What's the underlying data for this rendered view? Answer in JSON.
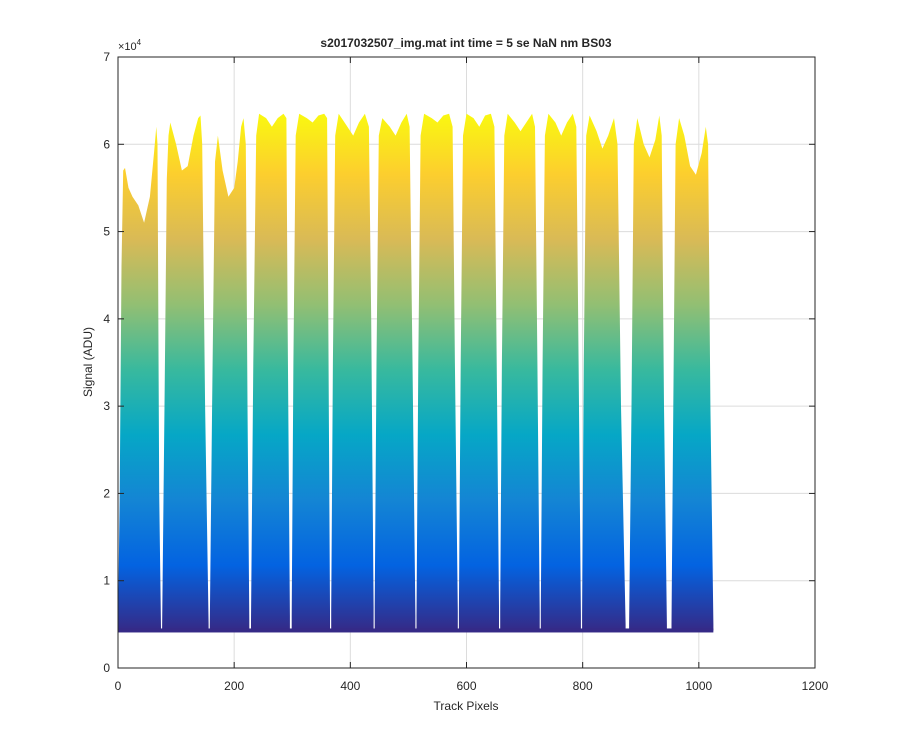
{
  "chart_data": {
    "type": "area",
    "title": "s2017032507_img.mat int time = 5 se  NaN nm BS03",
    "xlabel": "Track Pixels",
    "ylabel": "Signal (ADU)",
    "exponent_label": "×10",
    "exponent_power": "4",
    "xlim": [
      0,
      1200
    ],
    "ylim": [
      0,
      70000
    ],
    "y_scale_factor": 10000,
    "xticks": [
      0,
      200,
      400,
      600,
      800,
      1000,
      1200
    ],
    "yticks": [
      0,
      10000,
      20000,
      30000,
      40000,
      50000,
      60000,
      70000
    ],
    "xtick_labels": [
      "0",
      "200",
      "400",
      "600",
      "800",
      "1000",
      "1200"
    ],
    "ytick_labels": [
      "0",
      "1",
      "2",
      "3",
      "4",
      "5",
      "6",
      "7"
    ],
    "grid": true,
    "colormap": [
      "#352a87",
      "#0363e1",
      "#1485d4",
      "#06a7c6",
      "#38b99e",
      "#92bf73",
      "#d9ba56",
      "#fcce2e",
      "#f9fb0e"
    ],
    "baseline": 4300,
    "x_end": 1025,
    "series": [
      {
        "x": [
          0,
          3,
          6,
          9,
          12,
          18,
          25,
          35,
          45,
          55,
          62,
          66,
          68,
          71,
          74
        ],
        "y": [
          4300,
          20000,
          46000,
          57000,
          57300,
          55000,
          54000,
          53000,
          51000,
          54000,
          59000,
          62000,
          60000,
          20000,
          4500
        ]
      },
      {
        "x": [
          76,
          80,
          84,
          87,
          90,
          100,
          110,
          120,
          130,
          138,
          142,
          145,
          150,
          156
        ],
        "y": [
          4500,
          30000,
          56000,
          61000,
          62500,
          60000,
          57000,
          57500,
          61000,
          63000,
          63300,
          60000,
          30000,
          5000
        ]
      },
      {
        "x": [
          158,
          162,
          167,
          172,
          180,
          190,
          200,
          206,
          212,
          216,
          220,
          223,
          226
        ],
        "y": [
          5000,
          30000,
          58000,
          61000,
          57000,
          54000,
          55000,
          58000,
          62000,
          63000,
          60000,
          30000,
          5500
        ]
      },
      {
        "x": [
          229,
          233,
          238,
          243,
          255,
          265,
          275,
          285,
          290,
          292,
          296
        ],
        "y": [
          5500,
          35000,
          61000,
          63500,
          63000,
          62000,
          63000,
          63500,
          63000,
          40000,
          6000
        ]
      },
      {
        "x": [
          299,
          302,
          306,
          312,
          325,
          335,
          345,
          355,
          360,
          362,
          365
        ],
        "y": [
          6000,
          35000,
          61000,
          63500,
          63000,
          62500,
          63300,
          63500,
          63000,
          40000,
          6500
        ]
      },
      {
        "x": [
          367,
          370,
          374,
          380,
          395,
          405,
          415,
          425,
          432,
          436,
          440
        ],
        "y": [
          6500,
          35000,
          61000,
          63500,
          62000,
          61000,
          62500,
          63500,
          62000,
          40000,
          7000
        ]
      },
      {
        "x": [
          442,
          445,
          449,
          455,
          468,
          478,
          488,
          497,
          502,
          507,
          512
        ],
        "y": [
          7000,
          35000,
          61000,
          63000,
          62000,
          61000,
          62500,
          63500,
          62000,
          35000,
          6000
        ]
      },
      {
        "x": [
          514,
          517,
          521,
          527,
          540,
          550,
          560,
          570,
          576,
          580,
          585
        ],
        "y": [
          6000,
          35000,
          61000,
          63500,
          63000,
          62500,
          63300,
          63500,
          62000,
          35000,
          6500
        ]
      },
      {
        "x": [
          587,
          590,
          594,
          600,
          612,
          622,
          632,
          642,
          648,
          652,
          656
        ],
        "y": [
          6500,
          35000,
          61000,
          63500,
          63000,
          62000,
          63300,
          63500,
          62000,
          35000,
          7000
        ]
      },
      {
        "x": [
          658,
          661,
          665,
          671,
          683,
          693,
          703,
          713,
          718,
          722,
          726
        ],
        "y": [
          7000,
          35000,
          61000,
          63500,
          62500,
          61500,
          62500,
          63500,
          62000,
          35000,
          6500
        ]
      },
      {
        "x": [
          728,
          731,
          735,
          741,
          753,
          763,
          773,
          783,
          789,
          793,
          797
        ],
        "y": [
          6500,
          35000,
          61000,
          63500,
          62500,
          61000,
          62500,
          63500,
          62000,
          35000,
          6000
        ]
      },
      {
        "x": [
          799,
          802,
          806,
          812,
          824,
          834,
          844,
          854,
          860,
          866,
          874
        ],
        "y": [
          6000,
          35000,
          61000,
          63300,
          61500,
          59500,
          61000,
          63000,
          60000,
          30000,
          5000
        ]
      },
      {
        "x": [
          880,
          884,
          888,
          894,
          905,
          915,
          925,
          932,
          936,
          940,
          945
        ],
        "y": [
          5000,
          30000,
          60000,
          63000,
          60000,
          58500,
          60500,
          63300,
          61000,
          30000,
          5000
        ]
      },
      {
        "x": [
          953,
          956,
          960,
          966,
          975,
          985,
          995,
          1005,
          1012,
          1016,
          1020,
          1025
        ],
        "y": [
          5000,
          30000,
          60000,
          63000,
          61000,
          57500,
          56500,
          59000,
          62000,
          60000,
          30000,
          5000
        ]
      }
    ]
  }
}
